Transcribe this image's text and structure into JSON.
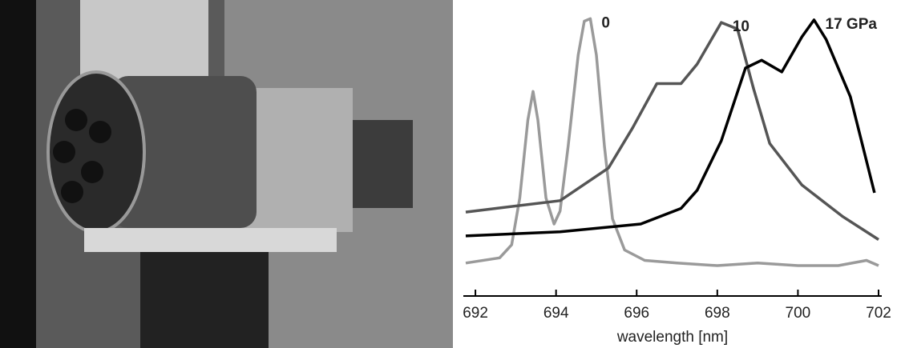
{
  "chart_data": {
    "type": "line",
    "x_label": "wavelength [nm]",
    "xlim": [
      691.7,
      702.08
    ],
    "xticks": [
      692,
      694,
      696,
      698,
      700,
      702
    ],
    "ylim": [
      0,
      100
    ],
    "series": [
      {
        "name": "0",
        "color": "#9a9a9a",
        "x": [
          691.76,
          692.6,
          692.9,
          693.1,
          693.3,
          693.43,
          693.55,
          693.75,
          693.95,
          694.1,
          694.3,
          694.55,
          694.7,
          694.85,
          695.0,
          695.2,
          695.4,
          695.7,
          696.2,
          697.0,
          698.0,
          699.0,
          700.0,
          701.0,
          701.7,
          702.0
        ],
        "values": [
          5,
          7,
          12,
          30,
          60,
          71,
          60,
          30,
          20,
          25,
          50,
          85,
          98,
          99,
          85,
          50,
          22,
          10,
          6,
          5,
          4,
          5,
          4,
          4,
          6,
          4
        ]
      },
      {
        "name": "10",
        "color": "#555555",
        "x": [
          691.76,
          694.1,
          695.3,
          695.9,
          696.5,
          697.1,
          697.5,
          698.1,
          698.5,
          698.9,
          699.3,
          700.1,
          701.1,
          702.0
        ],
        "values": [
          24.6,
          29,
          41.5,
          57,
          74,
          74,
          81.5,
          97.5,
          95,
          72,
          51,
          35,
          23,
          14
        ]
      },
      {
        "name": "17 GPa",
        "color": "#000000",
        "x": [
          691.76,
          694.1,
          696.1,
          697.1,
          697.5,
          698.1,
          698.7,
          699.1,
          699.6,
          700.1,
          700.4,
          700.7,
          701.3,
          701.9
        ],
        "values": [
          15.4,
          17,
          20,
          26,
          33,
          52,
          80,
          83,
          78.5,
          92,
          98.5,
          91,
          69,
          32
        ]
      }
    ]
  }
}
